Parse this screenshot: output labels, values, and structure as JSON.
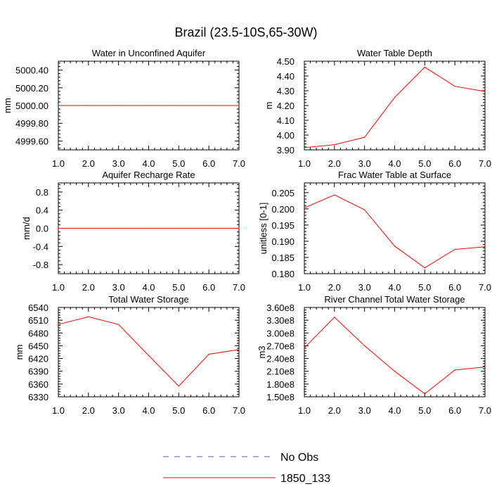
{
  "title": "Brazil (23.5-10S,65-30W)",
  "legend": [
    {
      "label": "No Obs",
      "color": "#5a5aa0",
      "style": "dashed"
    },
    {
      "label": "1850_133",
      "color": "#ff0000",
      "style": "solid"
    }
  ],
  "chart_data": [
    {
      "type": "line",
      "title": "Water in Unconfined Aquifer",
      "xlabel": "",
      "ylabel": "mm",
      "xlim": [
        1.0,
        7.0
      ],
      "ylim": [
        4999.5,
        5000.5
      ],
      "xticks": [
        "1.0",
        "2.0",
        "3.0",
        "4.0",
        "5.0",
        "6.0",
        "7.0"
      ],
      "yticks": [
        "4999.60",
        "4999.80",
        "5000.00",
        "5000.20",
        "5000.40"
      ],
      "x": [
        1,
        2,
        3,
        4,
        5,
        6,
        7
      ],
      "series": [
        {
          "name": "1850_133",
          "color": "#ff0000",
          "values": [
            5000.0,
            5000.0,
            5000.0,
            5000.0,
            5000.0,
            5000.0,
            5000.0
          ]
        }
      ]
    },
    {
      "type": "line",
      "title": "Water Table Depth",
      "xlabel": "",
      "ylabel": "m",
      "xlim": [
        1.0,
        7.0
      ],
      "ylim": [
        3.9,
        4.5
      ],
      "xticks": [
        "1.0",
        "2.0",
        "3.0",
        "4.0",
        "5.0",
        "6.0",
        "7.0"
      ],
      "yticks": [
        "3.90",
        "4.00",
        "4.10",
        "4.20",
        "4.30",
        "4.40",
        "4.50"
      ],
      "x": [
        1,
        2,
        3,
        4,
        5,
        6,
        7
      ],
      "series": [
        {
          "name": "1850_133",
          "color": "#ff0000",
          "values": [
            3.915,
            3.935,
            3.985,
            4.255,
            4.46,
            4.33,
            4.295
          ]
        }
      ]
    },
    {
      "type": "line",
      "title": "Aquifer Recharge Rate",
      "xlabel": "",
      "ylabel": "mm/d",
      "xlim": [
        1.0,
        7.0
      ],
      "ylim": [
        -1.0,
        1.0
      ],
      "xticks": [
        "1.0",
        "2.0",
        "3.0",
        "4.0",
        "5.0",
        "6.0",
        "7.0"
      ],
      "yticks": [
        "-0.8",
        "-0.4",
        "0.0",
        "0.4",
        "0.8"
      ],
      "x": [
        1,
        2,
        3,
        4,
        5,
        6,
        7
      ],
      "series": [
        {
          "name": "1850_133",
          "color": "#ff0000",
          "values": [
            0,
            0,
            0,
            0,
            0,
            0,
            0
          ]
        }
      ]
    },
    {
      "type": "line",
      "title": "Frac Water Table at Surface",
      "xlabel": "",
      "ylabel": "unitless [0-1]",
      "xlim": [
        1.0,
        7.0
      ],
      "ylim": [
        0.18,
        0.208
      ],
      "xticks": [
        "1.0",
        "2.0",
        "3.0",
        "4.0",
        "5.0",
        "6.0",
        "7.0"
      ],
      "yticks": [
        "0.180",
        "0.185",
        "0.190",
        "0.195",
        "0.200",
        "0.205"
      ],
      "x": [
        1,
        2,
        3,
        4,
        5,
        6,
        7
      ],
      "series": [
        {
          "name": "1850_133",
          "color": "#ff0000",
          "values": [
            0.2003,
            0.2043,
            0.1997,
            0.1885,
            0.1818,
            0.1875,
            0.1883
          ]
        }
      ]
    },
    {
      "type": "line",
      "title": "Total Water Storage",
      "xlabel": "",
      "ylabel": "mm",
      "xlim": [
        1.0,
        7.0
      ],
      "ylim": [
        6330,
        6540
      ],
      "xticks": [
        "1.0",
        "2.0",
        "3.0",
        "4.0",
        "5.0",
        "6.0",
        "7.0"
      ],
      "yticks": [
        "6330",
        "6360",
        "6390",
        "6420",
        "6450",
        "6480",
        "6510",
        "6540"
      ],
      "x": [
        1,
        2,
        3,
        4,
        5,
        6,
        7
      ],
      "series": [
        {
          "name": "1850_133",
          "color": "#ff0000",
          "values": [
            6500,
            6518,
            6500,
            6427,
            6355,
            6430,
            6441
          ]
        }
      ]
    },
    {
      "type": "line",
      "title": "River Channel Total Water Storage",
      "xlabel": "",
      "ylabel": "m3",
      "xlim": [
        1.0,
        7.0
      ],
      "ylim": [
        150000000.0,
        360000000.0
      ],
      "xticks": [
        "1.0",
        "2.0",
        "3.0",
        "4.0",
        "5.0",
        "6.0",
        "7.0"
      ],
      "yticks": [
        "1.50e8",
        "1.80e8",
        "2.10e8",
        "2.40e8",
        "2.70e8",
        "3.00e8",
        "3.30e8",
        "3.60e8"
      ],
      "x": [
        1,
        2,
        3,
        4,
        5,
        6,
        7
      ],
      "series": [
        {
          "name": "1850_133",
          "color": "#ff0000",
          "values": [
            265000000.0,
            337000000.0,
            270000000.0,
            210000000.0,
            157000000.0,
            213000000.0,
            220000000.0
          ]
        }
      ]
    }
  ]
}
